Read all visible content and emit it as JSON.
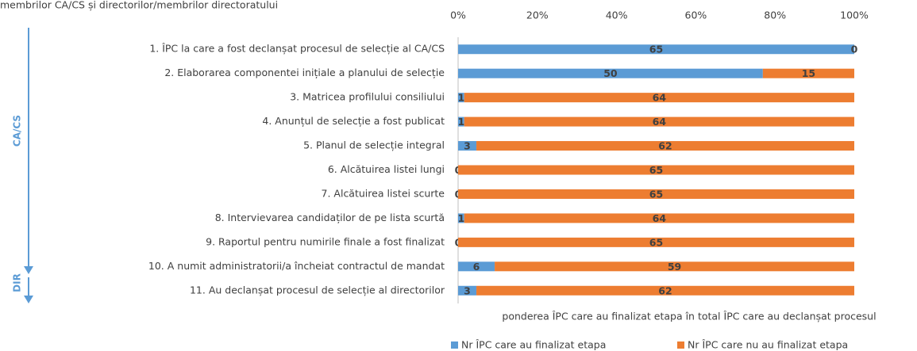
{
  "chart_data": {
    "type": "bar",
    "orientation": "horizontal",
    "stack": "percent",
    "title": "membrilor CA/CS și directorilor/membrilor directoratului",
    "x_label": "ponderea ÎPC care au finalizat etapa în total ÎPC care au declanșat procesul",
    "annotations": [
      "CA/CS",
      "DIR"
    ],
    "categories": [
      "1. ÎPC la care a fost declanșat procesul de selecție al CA/CS",
      "2. Elaborarea componentei inițiale a planului de selecție",
      "3. Matricea profilului consiliului",
      "4. Anunțul de selecție a fost publicat",
      "5. Planul de selecție integral",
      "6. Alcătuirea listei lungi",
      "7. Alcătuirea listei scurte",
      "8. Intervievarea candidaților de pe lista scurtă",
      "9. Raportul pentru numirile finale a fost finalizat",
      "10. A numit administratorii/a încheiat contractul de mandat",
      "11. Au declanșat procesul de selecție al directorilor"
    ],
    "series": [
      {
        "name": "Nr ÎPC care au finalizat etapa",
        "color": "#5b9bd5",
        "values": [
          65,
          50,
          1,
          1,
          3,
          0,
          0,
          1,
          0,
          6,
          3
        ]
      },
      {
        "name": "Nr ÎPC care nu au finalizat etapa",
        "color": "#ed7d31",
        "values": [
          0,
          15,
          64,
          64,
          62,
          65,
          65,
          64,
          65,
          59,
          62
        ]
      }
    ],
    "xlim": [
      0,
      100
    ],
    "xticks": [
      {
        "value": 0,
        "label": "0%"
      },
      {
        "value": 20,
        "label": "20%"
      },
      {
        "value": 40,
        "label": "40%"
      },
      {
        "value": 60,
        "label": "60%"
      },
      {
        "value": 80,
        "label": "80%"
      },
      {
        "value": 100,
        "label": "100%"
      }
    ],
    "grid": false,
    "legend": "bottom"
  }
}
